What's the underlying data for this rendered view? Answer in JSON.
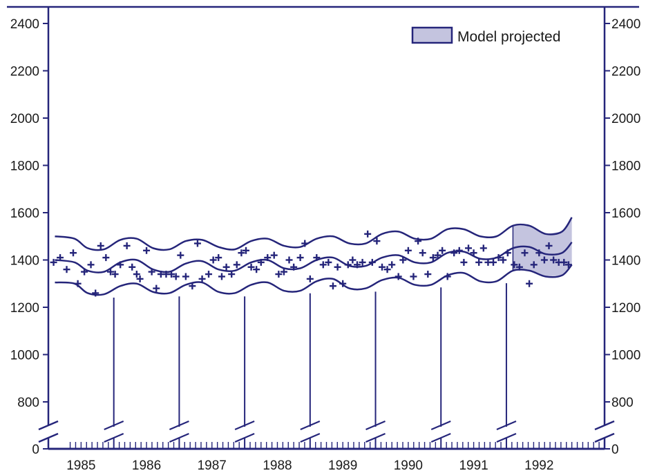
{
  "chart_data": {
    "type": "line",
    "title": "",
    "xlabel": "",
    "ylabel": "",
    "colors": {
      "ink": "#25257a",
      "band_fill": "#c4c4df",
      "text": "#1a1a1a"
    },
    "axes": {
      "left_ticks": [
        2400,
        2200,
        2000,
        1800,
        1600,
        1400,
        1200,
        1000,
        800,
        0
      ],
      "right_ticks": [
        2400,
        2200,
        2000,
        1800,
        1600,
        1400,
        1200,
        1000,
        800,
        0
      ],
      "y_range": [
        700,
        2400
      ],
      "y_break": "between 0 and 800",
      "x_ticks": [
        "1985",
        "1986",
        "1987",
        "1988",
        "1989",
        "1990",
        "1991",
        "1992"
      ],
      "x_range": [
        1984.5,
        1993.0
      ]
    },
    "legend": {
      "label": "Model projected",
      "position": "top-right"
    },
    "projection_start": 1991.6,
    "series": [
      {
        "role": "model-upper",
        "x": [
          1984.6,
          1984.9,
          1985.1,
          1985.35,
          1985.6,
          1985.85,
          1986.1,
          1986.35,
          1986.6,
          1986.85,
          1987.1,
          1987.35,
          1987.6,
          1987.85,
          1988.1,
          1988.35,
          1988.6,
          1988.85,
          1989.1,
          1989.35,
          1989.6,
          1989.85,
          1990.1,
          1990.35,
          1990.6,
          1990.85,
          1991.1,
          1991.35,
          1991.6,
          1991.85,
          1992.1,
          1992.35,
          1992.5
        ],
        "y": [
          1500,
          1490,
          1450,
          1445,
          1485,
          1490,
          1450,
          1445,
          1480,
          1485,
          1455,
          1445,
          1480,
          1490,
          1460,
          1455,
          1490,
          1500,
          1470,
          1470,
          1510,
          1520,
          1490,
          1490,
          1530,
          1530,
          1500,
          1500,
          1545,
          1545,
          1510,
          1520,
          1580
        ]
      },
      {
        "role": "model-mean",
        "x": [
          1984.6,
          1984.9,
          1985.1,
          1985.35,
          1985.6,
          1985.85,
          1986.1,
          1986.35,
          1986.6,
          1986.85,
          1987.1,
          1987.35,
          1987.6,
          1987.85,
          1988.1,
          1988.35,
          1988.6,
          1988.85,
          1989.1,
          1989.35,
          1989.6,
          1989.85,
          1990.1,
          1990.35,
          1990.6,
          1990.85,
          1991.1,
          1991.35,
          1991.6,
          1991.85,
          1992.1,
          1992.35,
          1992.5
        ],
        "y": [
          1400,
          1390,
          1355,
          1350,
          1390,
          1400,
          1360,
          1350,
          1385,
          1395,
          1360,
          1355,
          1390,
          1400,
          1365,
          1365,
          1400,
          1410,
          1375,
          1375,
          1410,
          1420,
          1390,
          1390,
          1430,
          1435,
          1405,
          1410,
          1450,
          1455,
          1425,
          1430,
          1475
        ]
      },
      {
        "role": "model-lower",
        "x": [
          1984.6,
          1984.9,
          1985.1,
          1985.35,
          1985.6,
          1985.85,
          1986.1,
          1986.35,
          1986.6,
          1986.85,
          1987.1,
          1987.35,
          1987.6,
          1987.85,
          1988.1,
          1988.35,
          1988.6,
          1988.85,
          1989.1,
          1989.35,
          1989.6,
          1989.85,
          1990.1,
          1990.35,
          1990.6,
          1990.85,
          1991.1,
          1991.35,
          1991.6,
          1991.85,
          1992.1,
          1992.35,
          1992.5
        ],
        "y": [
          1305,
          1300,
          1260,
          1255,
          1290,
          1300,
          1265,
          1260,
          1295,
          1305,
          1265,
          1260,
          1295,
          1305,
          1270,
          1270,
          1310,
          1320,
          1280,
          1280,
          1315,
          1325,
          1295,
          1295,
          1335,
          1345,
          1310,
          1310,
          1355,
          1355,
          1330,
          1335,
          1380
        ]
      },
      {
        "role": "observed",
        "x": [
          1984.58,
          1984.68,
          1984.78,
          1984.88,
          1984.95,
          1985.05,
          1985.15,
          1985.22,
          1985.3,
          1985.38,
          1985.45,
          1985.52,
          1985.6,
          1985.7,
          1985.78,
          1985.85,
          1985.9,
          1986.0,
          1986.08,
          1986.15,
          1986.22,
          1986.3,
          1986.38,
          1986.45,
          1986.52,
          1986.6,
          1986.7,
          1986.78,
          1986.85,
          1986.95,
          1987.02,
          1987.1,
          1987.15,
          1987.22,
          1987.3,
          1987.38,
          1987.45,
          1987.52,
          1987.6,
          1987.68,
          1987.75,
          1987.85,
          1987.95,
          1988.02,
          1988.1,
          1988.18,
          1988.25,
          1988.35,
          1988.42,
          1988.5,
          1988.6,
          1988.7,
          1988.78,
          1988.85,
          1988.92,
          1989.0,
          1989.08,
          1989.15,
          1989.22,
          1989.3,
          1989.38,
          1989.45,
          1989.52,
          1989.6,
          1989.68,
          1989.75,
          1989.85,
          1989.92,
          1990.0,
          1990.08,
          1990.15,
          1990.22,
          1990.3,
          1990.38,
          1990.45,
          1990.52,
          1990.6,
          1990.7,
          1990.78,
          1990.85,
          1990.92,
          1991.0,
          1991.08,
          1991.15,
          1991.22,
          1991.3,
          1991.38,
          1991.45,
          1991.52,
          1991.62,
          1991.7,
          1991.78,
          1991.85,
          1991.92,
          1992.0,
          1992.08,
          1992.15,
          1992.22,
          1992.3,
          1992.38,
          1992.45
        ],
        "y": [
          1390,
          1410,
          1360,
          1430,
          1300,
          1350,
          1380,
          1260,
          1460,
          1410,
          1350,
          1340,
          1380,
          1460,
          1370,
          1340,
          1320,
          1440,
          1350,
          1280,
          1340,
          1340,
          1340,
          1330,
          1420,
          1330,
          1290,
          1470,
          1320,
          1340,
          1400,
          1410,
          1330,
          1370,
          1340,
          1380,
          1430,
          1440,
          1370,
          1360,
          1390,
          1410,
          1420,
          1340,
          1350,
          1400,
          1370,
          1410,
          1470,
          1320,
          1410,
          1380,
          1390,
          1290,
          1370,
          1300,
          1380,
          1400,
          1380,
          1390,
          1510,
          1390,
          1480,
          1370,
          1360,
          1380,
          1330,
          1400,
          1440,
          1330,
          1480,
          1430,
          1340,
          1410,
          1420,
          1440,
          1330,
          1430,
          1440,
          1390,
          1450,
          1430,
          1390,
          1450,
          1390,
          1390,
          1410,
          1400,
          1430,
          1380,
          1370,
          1430,
          1300,
          1380,
          1430,
          1400,
          1460,
          1400,
          1390,
          1390,
          1380
        ]
      }
    ]
  }
}
